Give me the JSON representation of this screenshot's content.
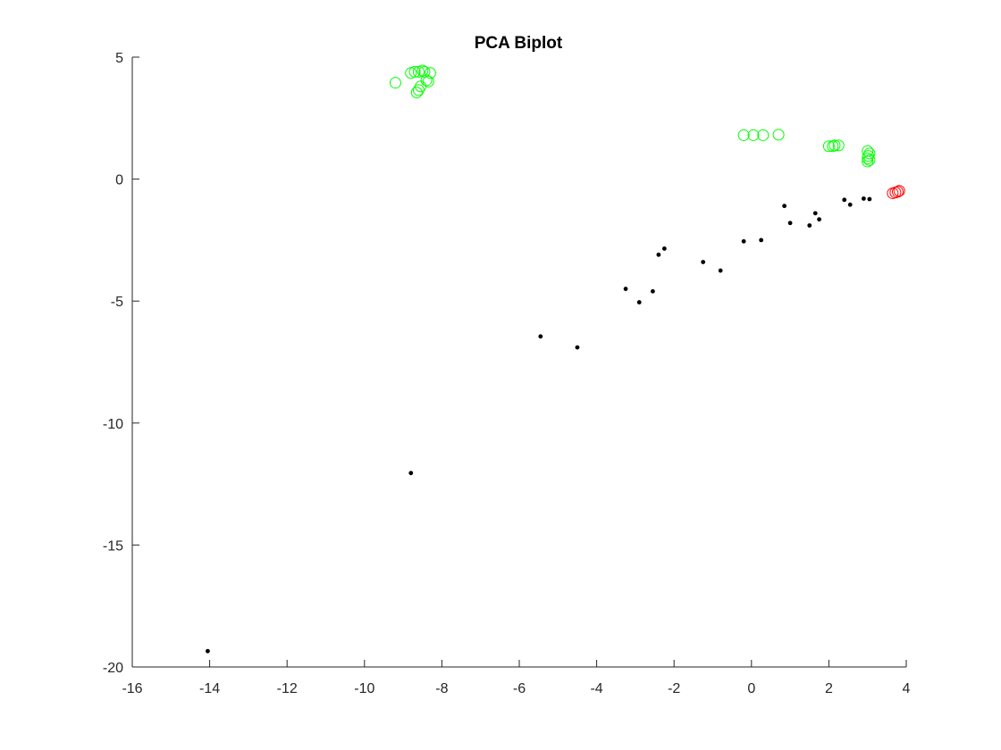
{
  "chart_data": {
    "type": "scatter",
    "title": "PCA Biplot",
    "xlabel": "",
    "ylabel": "",
    "xlim": [
      -16,
      4
    ],
    "ylim": [
      -20,
      5
    ],
    "xticks": [
      -16,
      -14,
      -12,
      -10,
      -8,
      -6,
      -4,
      -2,
      0,
      2,
      4
    ],
    "yticks": [
      -20,
      -15,
      -10,
      -5,
      0,
      5
    ],
    "grid": false,
    "box": false,
    "colors": {
      "axis": "#262626",
      "green": "#00ff00",
      "red": "#ff0000",
      "black": "#000000"
    },
    "series": [
      {
        "marker": "circle-open",
        "color": "#00ff00",
        "points": [
          [
            -9.2,
            3.95
          ],
          [
            -8.8,
            4.35
          ],
          [
            -8.7,
            4.4
          ],
          [
            -8.6,
            4.4
          ],
          [
            -8.5,
            4.45
          ],
          [
            -8.45,
            4.4
          ],
          [
            -8.3,
            4.35
          ],
          [
            -8.4,
            4.05
          ],
          [
            -8.35,
            4.0
          ],
          [
            -8.55,
            3.8
          ],
          [
            -8.6,
            3.65
          ],
          [
            -8.65,
            3.55
          ],
          [
            -0.2,
            1.8
          ],
          [
            0.05,
            1.8
          ],
          [
            0.3,
            1.8
          ],
          [
            0.7,
            1.82
          ],
          [
            2.0,
            1.35
          ],
          [
            2.1,
            1.35
          ],
          [
            2.15,
            1.38
          ],
          [
            2.25,
            1.38
          ],
          [
            3.0,
            1.15
          ],
          [
            3.05,
            1.05
          ],
          [
            3.02,
            0.95
          ],
          [
            3.0,
            0.85
          ],
          [
            3.05,
            0.78
          ],
          [
            3.0,
            0.72
          ]
        ]
      },
      {
        "marker": "circle-open",
        "color": "#ff0000",
        "points": [
          [
            3.65,
            -0.58
          ],
          [
            3.72,
            -0.55
          ],
          [
            3.78,
            -0.52
          ],
          [
            3.82,
            -0.48
          ]
        ]
      },
      {
        "marker": "dot",
        "color": "#000000",
        "points": [
          [
            -14.05,
            -19.35
          ],
          [
            -8.8,
            -12.05
          ],
          [
            -5.45,
            -6.45
          ],
          [
            -4.5,
            -6.9
          ],
          [
            -3.25,
            -4.5
          ],
          [
            -2.9,
            -5.05
          ],
          [
            -2.55,
            -4.6
          ],
          [
            -2.4,
            -3.1
          ],
          [
            -2.25,
            -2.85
          ],
          [
            -1.25,
            -3.4
          ],
          [
            -0.8,
            -3.75
          ],
          [
            -0.2,
            -2.55
          ],
          [
            0.25,
            -2.5
          ],
          [
            0.85,
            -1.1
          ],
          [
            1.0,
            -1.8
          ],
          [
            1.5,
            -1.9
          ],
          [
            1.65,
            -1.4
          ],
          [
            1.75,
            -1.65
          ],
          [
            2.4,
            -0.85
          ],
          [
            2.55,
            -1.05
          ],
          [
            2.9,
            -0.8
          ],
          [
            3.05,
            -0.82
          ]
        ]
      }
    ]
  }
}
